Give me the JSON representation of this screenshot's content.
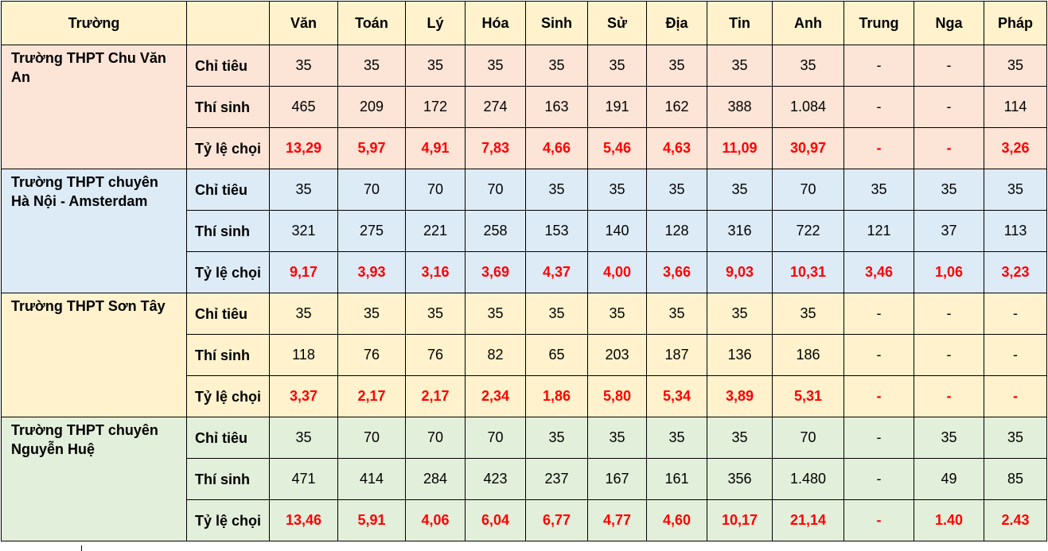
{
  "header": {
    "school_label": "Trường",
    "metric_label": "",
    "subjects": [
      "Văn",
      "Toán",
      "Lý",
      "Hóa",
      "Sinh",
      "Sử",
      "Địa",
      "Tin",
      "Anh",
      "Trung",
      "Nga",
      "Pháp"
    ]
  },
  "colors": {
    "header": "#fff2cc",
    "groups": [
      "#fce4d6",
      "#ddebf7",
      "#fff2cc",
      "#e2efda"
    ],
    "ratio_text": "#ff0000"
  },
  "schools": [
    {
      "name": "Trường THPT Chu Văn An",
      "rows": [
        {
          "label": "Chỉ tiêu",
          "values": [
            "35",
            "35",
            "35",
            "35",
            "35",
            "35",
            "35",
            "35",
            "35",
            "-",
            "-",
            "35"
          ]
        },
        {
          "label": "Thí sinh",
          "values": [
            "465",
            "209",
            "172",
            "274",
            "163",
            "191",
            "162",
            "388",
            "1.084",
            "-",
            "-",
            "114"
          ]
        },
        {
          "label": "Tỷ lệ chọi",
          "values": [
            "13,29",
            "5,97",
            "4,91",
            "7,83",
            "4,66",
            "5,46",
            "4,63",
            "11,09",
            "30,97",
            "-",
            "-",
            "3,26"
          ]
        }
      ]
    },
    {
      "name": "Trường THPT chuyên Hà Nội - Amsterdam",
      "rows": [
        {
          "label": "Chỉ tiêu",
          "values": [
            "35",
            "70",
            "70",
            "70",
            "35",
            "35",
            "35",
            "35",
            "70",
            "35",
            "35",
            "35"
          ]
        },
        {
          "label": "Thí sinh",
          "values": [
            "321",
            "275",
            "221",
            "258",
            "153",
            "140",
            "128",
            "316",
            "722",
            "121",
            "37",
            "113"
          ]
        },
        {
          "label": "Tỷ lệ chọi",
          "values": [
            "9,17",
            "3,93",
            "3,16",
            "3,69",
            "4,37",
            "4,00",
            "3,66",
            "9,03",
            "10,31",
            "3,46",
            "1,06",
            "3,23"
          ]
        }
      ]
    },
    {
      "name": "Trường THPT Sơn Tây",
      "rows": [
        {
          "label": "Chỉ tiêu",
          "values": [
            "35",
            "35",
            "35",
            "35",
            "35",
            "35",
            "35",
            "35",
            "35",
            "-",
            "-",
            "-"
          ]
        },
        {
          "label": "Thí sinh",
          "values": [
            "118",
            "76",
            "76",
            "82",
            "65",
            "203",
            "187",
            "136",
            "186",
            "-",
            "-",
            "-"
          ]
        },
        {
          "label": "Tỷ lệ chọi",
          "values": [
            "3,37",
            "2,17",
            "2,17",
            "2,34",
            "1,86",
            "5,80",
            "5,34",
            "3,89",
            "5,31",
            "-",
            "-",
            "-"
          ]
        }
      ]
    },
    {
      "name": "Trường THPT chuyên Nguyễn Huệ",
      "rows": [
        {
          "label": "Chỉ tiêu",
          "values": [
            "35",
            "70",
            "70",
            "70",
            "35",
            "35",
            "35",
            "35",
            "70",
            "-",
            "35",
            "35"
          ]
        },
        {
          "label": "Thí sinh",
          "values": [
            "471",
            "414",
            "284",
            "423",
            "237",
            "167",
            "161",
            "356",
            "1.480",
            "-",
            "49",
            "85"
          ]
        },
        {
          "label": "Tỷ lệ chọi",
          "values": [
            "13,46",
            "5,91",
            "4,06",
            "6,04",
            "6,77",
            "4,77",
            "4,60",
            "10,17",
            "21,14",
            "-",
            "1.40",
            "2.43"
          ]
        }
      ]
    }
  ]
}
